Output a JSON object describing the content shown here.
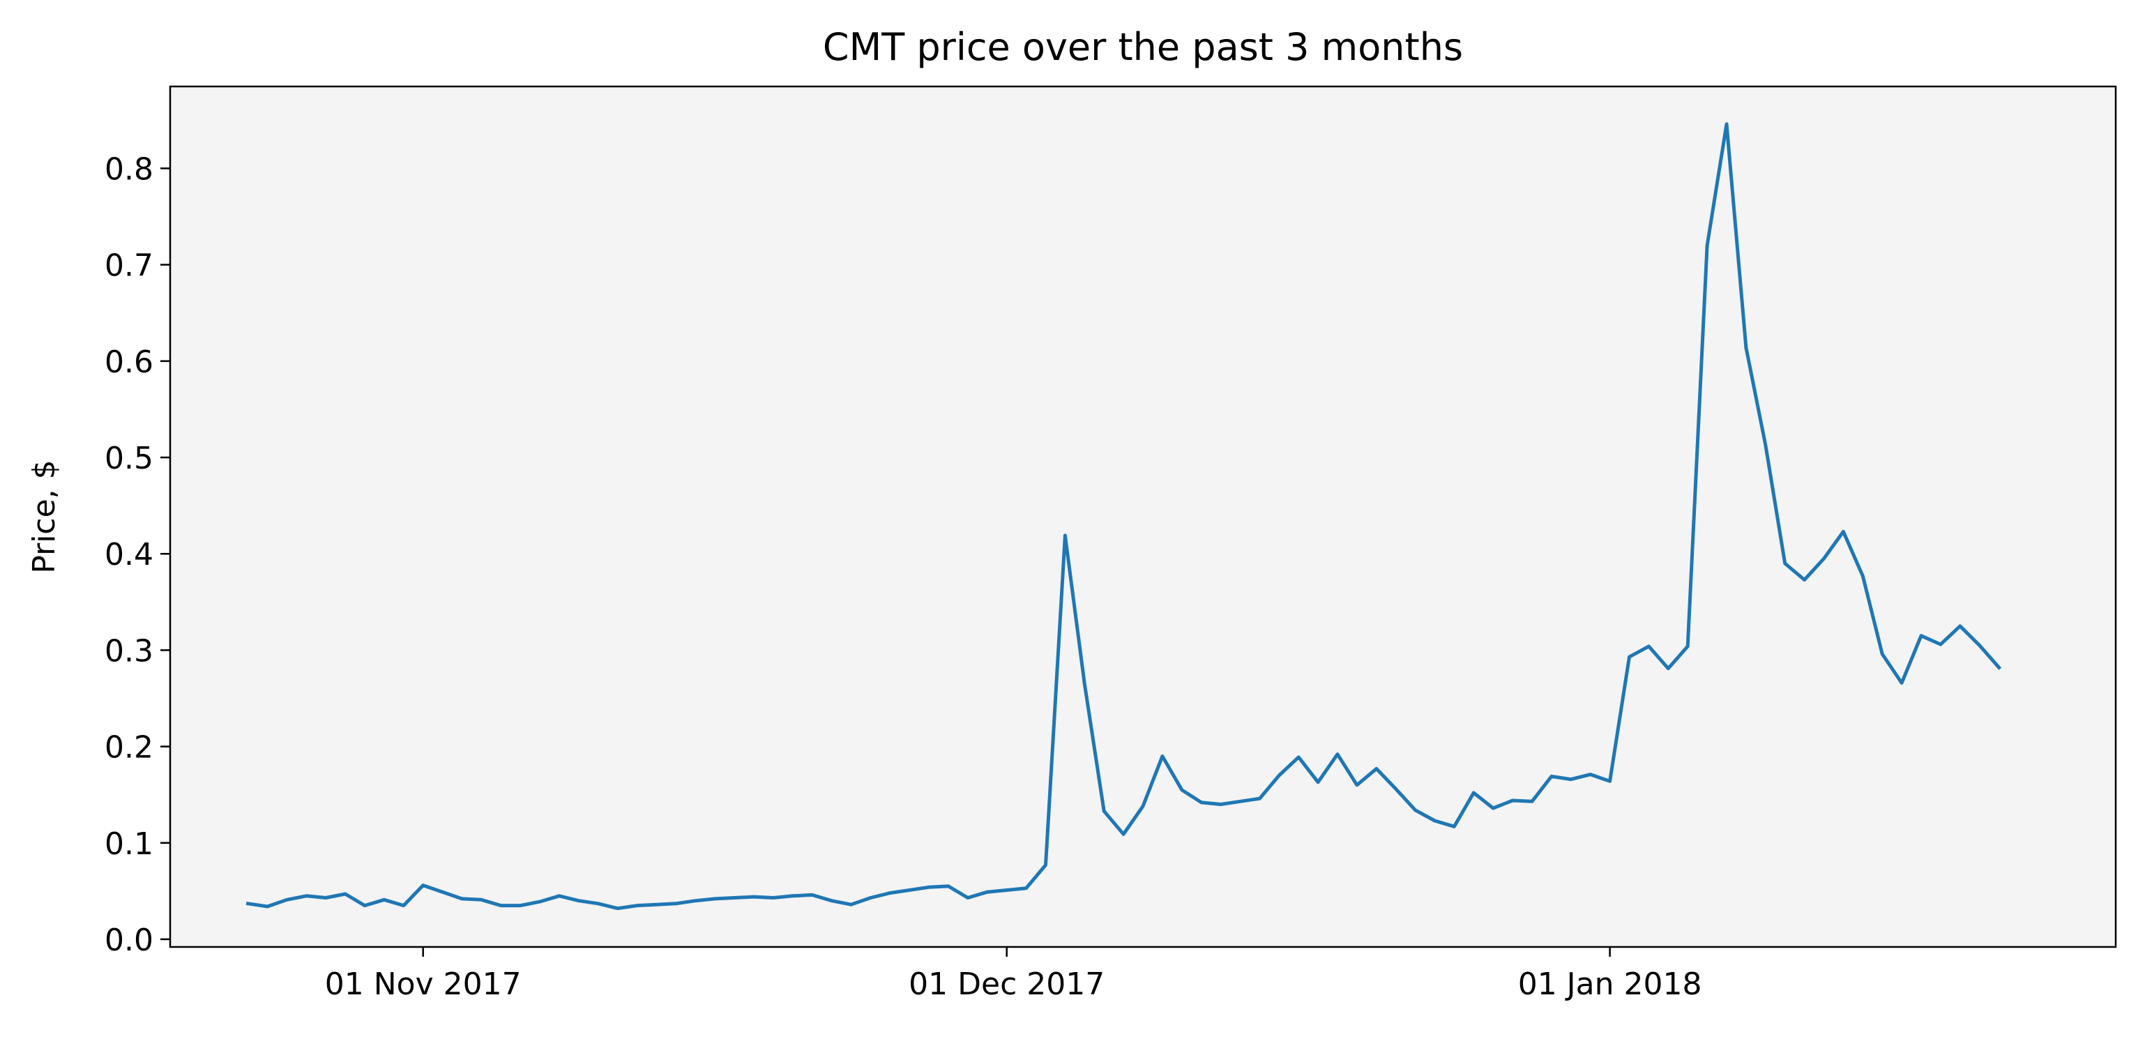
{
  "chart_data": {
    "type": "line",
    "title": "CMT price over the past 3 months",
    "xlabel": "",
    "ylabel": "Price, $",
    "x_start_date": "2017-10-23",
    "x_step_days": 1,
    "xlim": [
      "2017-10-19",
      "2018-01-27"
    ],
    "ylim": [
      -0.008,
      0.885
    ],
    "x_ticks": [
      {
        "date": "2017-11-01",
        "label": "01 Nov 2017"
      },
      {
        "date": "2017-12-01",
        "label": "01 Dec 2017"
      },
      {
        "date": "2018-01-01",
        "label": "01 Jan 2018"
      }
    ],
    "y_ticks": [
      {
        "value": 0.0,
        "label": "0.0"
      },
      {
        "value": 0.1,
        "label": "0.1"
      },
      {
        "value": 0.2,
        "label": "0.2"
      },
      {
        "value": 0.3,
        "label": "0.3"
      },
      {
        "value": 0.4,
        "label": "0.4"
      },
      {
        "value": 0.5,
        "label": "0.5"
      },
      {
        "value": 0.6,
        "label": "0.6"
      },
      {
        "value": 0.7,
        "label": "0.7"
      },
      {
        "value": 0.8,
        "label": "0.8"
      }
    ],
    "grid": false,
    "legend": "none",
    "colors": {
      "line": "#1f77b4",
      "plot_background": "#f4f4f4"
    },
    "series": [
      {
        "values": [
          0.037,
          0.034,
          0.041,
          0.045,
          0.043,
          0.047,
          0.035,
          0.041,
          0.035,
          0.056,
          0.049,
          0.042,
          0.041,
          0.035,
          0.035,
          0.039,
          0.045,
          0.04,
          0.037,
          0.032,
          0.035,
          0.036,
          0.037,
          0.04,
          0.042,
          0.043,
          0.044,
          0.043,
          0.045,
          0.046,
          0.04,
          0.036,
          0.043,
          0.048,
          0.051,
          0.054,
          0.055,
          0.043,
          0.049,
          0.051,
          0.053,
          0.077,
          0.419,
          0.265,
          0.133,
          0.109,
          0.138,
          0.19,
          0.155,
          0.142,
          0.14,
          0.143,
          0.146,
          0.17,
          0.189,
          0.163,
          0.192,
          0.16,
          0.177,
          0.156,
          0.134,
          0.123,
          0.117,
          0.152,
          0.136,
          0.144,
          0.143,
          0.169,
          0.166,
          0.171,
          0.164,
          0.293,
          0.304,
          0.281,
          0.304,
          0.72,
          0.846,
          0.614,
          0.513,
          0.39,
          0.373,
          0.395,
          0.423,
          0.377,
          0.296,
          0.266,
          0.315,
          0.306,
          0.325,
          0.305,
          0.282
        ]
      }
    ]
  }
}
